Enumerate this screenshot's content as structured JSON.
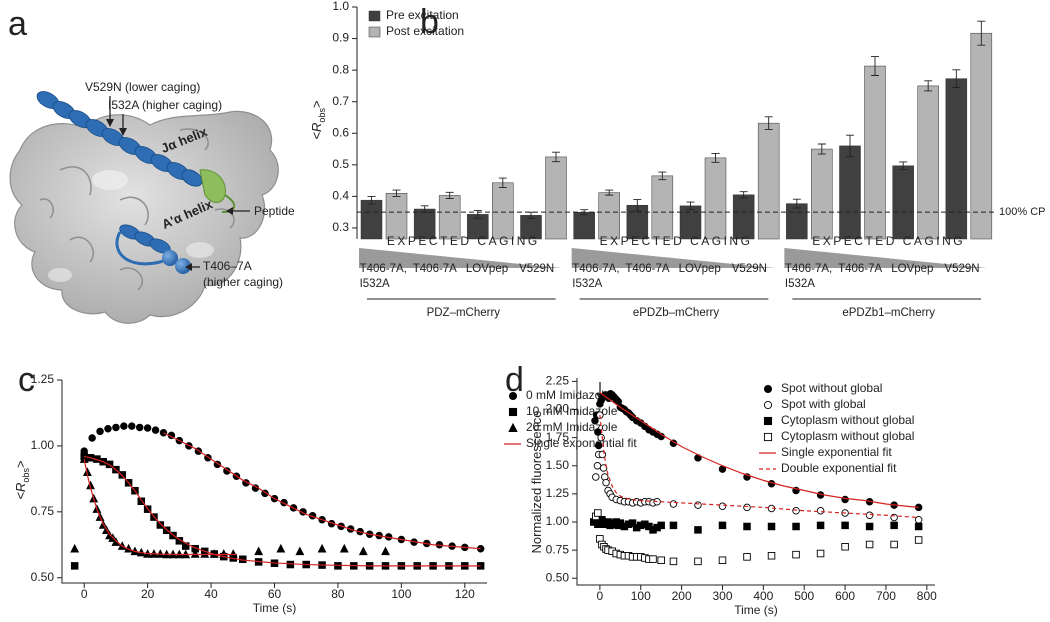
{
  "panel_a": {
    "panel": "a",
    "labels": [
      "V529N (lower caging)",
      "I532A (higher caging)",
      "Jα helix",
      "A'α helix",
      "Peptide",
      "T406–7A",
      "(higher caging)"
    ]
  },
  "chart_data": [
    {
      "type": "bar",
      "panel": "b",
      "ylabel": [
        "<",
        "R",
        "obs",
        ">"
      ],
      "categories": [
        "T406-7A, I532A",
        "T406-7A",
        "LOVpep",
        "V529N",
        "T406-7A, I532A",
        "T406-7A",
        "LOVpep",
        "V529N",
        "T406-7A, I532A",
        "T406-7A",
        "LOVpep",
        "V529N"
      ],
      "groups": [
        "PDZ–mCherry",
        "ePDZb–mCherry",
        "ePDZb1–mCherry"
      ],
      "caging_labels": [
        "EXPECTED CAGING",
        "EXPECTED CAGING",
        "EXPECTED CAGING"
      ],
      "series": [
        {
          "name": "Pre excitation",
          "color": "#404040",
          "values": [
            0.388,
            0.36,
            0.343,
            0.34,
            0.35,
            0.372,
            0.37,
            0.405,
            0.377,
            0.56,
            0.497,
            0.773
          ],
          "errors": [
            0.012,
            0.01,
            0.012,
            0.01,
            0.008,
            0.018,
            0.012,
            0.01,
            0.014,
            0.034,
            0.012,
            0.028
          ]
        },
        {
          "name": "Post excitation",
          "color": "#b4b4b4",
          "values": [
            0.41,
            0.403,
            0.443,
            0.525,
            0.412,
            0.465,
            0.522,
            0.632,
            0.55,
            0.813,
            0.75,
            0.917
          ],
          "errors": [
            0.01,
            0.01,
            0.015,
            0.015,
            0.008,
            0.012,
            0.014,
            0.02,
            0.016,
            0.03,
            0.016,
            0.038
          ]
        }
      ],
      "reference_line": {
        "value": 0.35,
        "label": "100% CP"
      },
      "ylim": [
        0.265,
        1.0
      ],
      "yticks": [
        0.3,
        0.4,
        0.5,
        0.6,
        0.7,
        0.8,
        0.9,
        {
          "value": 1.0,
          "label": "1.0"
        }
      ],
      "legend": "upper left"
    },
    {
      "type": "scatter",
      "panel": "c",
      "xlabel": "Time (s)",
      "ylabel": [
        "<",
        "R",
        "obs",
        ">"
      ],
      "xlim": [
        -7,
        127
      ],
      "ylim": [
        0.48,
        1.25
      ],
      "xticks": [
        0,
        20,
        40,
        60,
        80,
        100,
        120
      ],
      "yticks": [
        {
          "value": 0.5,
          "label": "0.50"
        },
        {
          "value": 0.75,
          "label": "0.75"
        },
        {
          "value": 1.0,
          "label": "1.00"
        },
        {
          "value": 1.25,
          "label": "1.25"
        }
      ],
      "legend": "upper right",
      "series": [
        {
          "name": "0 mM Imidazole",
          "marker": "circle",
          "filled": true,
          "color": "#000000",
          "x": [
            0,
            2.5,
            5,
            7.5,
            10,
            12.5,
            15,
            17.5,
            20,
            22.5,
            25,
            27.5,
            30,
            33,
            36,
            39,
            42,
            45,
            48,
            51,
            54,
            57,
            60,
            63,
            66,
            69,
            72,
            75,
            78,
            81,
            84,
            87,
            90,
            93,
            96,
            100,
            104,
            108,
            112,
            116,
            120,
            125
          ],
          "values": [
            0.98,
            1.03,
            1.055,
            1.065,
            1.07,
            1.075,
            1.075,
            1.07,
            1.068,
            1.06,
            1.05,
            1.04,
            1.02,
            1.0,
            0.98,
            0.955,
            0.93,
            0.905,
            0.885,
            0.86,
            0.84,
            0.82,
            0.8,
            0.785,
            0.765,
            0.75,
            0.735,
            0.72,
            0.705,
            0.695,
            0.685,
            0.675,
            0.665,
            0.66,
            0.655,
            0.645,
            0.635,
            0.63,
            0.625,
            0.62,
            0.615,
            0.61
          ]
        },
        {
          "name": "10 mM Imidazole",
          "marker": "square",
          "filled": true,
          "color": "#000000",
          "x": [
            -3,
            0,
            2,
            4,
            6,
            8,
            10,
            12,
            14,
            16,
            18,
            20,
            22,
            24,
            26,
            28,
            30,
            32,
            35,
            38,
            41,
            44,
            47,
            50,
            55,
            60,
            65,
            70,
            75,
            80,
            85,
            90,
            95,
            100,
            105,
            110,
            115,
            120,
            125
          ],
          "values": [
            0.545,
            0.96,
            0.955,
            0.95,
            0.94,
            0.93,
            0.91,
            0.89,
            0.86,
            0.83,
            0.79,
            0.76,
            0.73,
            0.7,
            0.68,
            0.66,
            0.64,
            0.62,
            0.61,
            0.6,
            0.59,
            0.58,
            0.575,
            0.57,
            0.56,
            0.555,
            0.55,
            0.55,
            0.548,
            0.545,
            0.545,
            0.545,
            0.545,
            0.545,
            0.545,
            0.545,
            0.545,
            0.545,
            0.545
          ]
        },
        {
          "name": "20 mM Imidazole",
          "marker": "triangle",
          "filled": true,
          "color": "#000000",
          "x": [
            -3,
            0,
            1,
            2,
            3,
            4,
            5,
            6,
            7,
            8,
            9,
            10,
            12,
            14,
            16,
            18,
            20,
            22,
            24,
            26,
            28,
            30,
            32,
            35,
            38,
            41,
            44,
            47,
            55,
            62,
            68,
            75,
            82,
            88,
            95
          ],
          "values": [
            0.61,
            0.95,
            0.9,
            0.85,
            0.8,
            0.76,
            0.73,
            0.7,
            0.68,
            0.66,
            0.65,
            0.635,
            0.62,
            0.61,
            0.6,
            0.595,
            0.59,
            0.59,
            0.59,
            0.588,
            0.588,
            0.588,
            0.588,
            0.59,
            0.59,
            0.59,
            0.59,
            0.59,
            0.6,
            0.61,
            0.6,
            0.61,
            0.61,
            0.6,
            0.6
          ]
        }
      ],
      "fits": [
        {
          "name": "Single exponential fit",
          "color": "#d62020",
          "dashed": false,
          "curves": [
            {
              "x": [
                25,
                30,
                35,
                40,
                45,
                50,
                55,
                60,
                65,
                70,
                75,
                80,
                85,
                90,
                95,
                100,
                105,
                110,
                115,
                120,
                125
              ],
              "values": [
                1.05,
                1.02,
                0.99,
                0.95,
                0.91,
                0.87,
                0.84,
                0.8,
                0.77,
                0.74,
                0.72,
                0.7,
                0.68,
                0.665,
                0.655,
                0.645,
                0.635,
                0.625,
                0.62,
                0.615,
                0.61
              ]
            },
            {
              "x": [
                0,
                2,
                4,
                6,
                8,
                10,
                12,
                14,
                16,
                18,
                20,
                22,
                24,
                26,
                28,
                30,
                34,
                38,
                42,
                46,
                50,
                60,
                70,
                80,
                90,
                100,
                110,
                125
              ],
              "values": [
                0.96,
                0.955,
                0.948,
                0.94,
                0.928,
                0.91,
                0.887,
                0.86,
                0.83,
                0.795,
                0.762,
                0.732,
                0.705,
                0.682,
                0.662,
                0.645,
                0.618,
                0.6,
                0.585,
                0.575,
                0.567,
                0.556,
                0.55,
                0.547,
                0.545,
                0.545,
                0.545,
                0.545
              ]
            },
            {
              "x": [
                0,
                1,
                2,
                3,
                4,
                5,
                6,
                8,
                10,
                12,
                14,
                16,
                18,
                20,
                25,
                30,
                40,
                48
              ],
              "values": [
                0.95,
                0.89,
                0.84,
                0.8,
                0.76,
                0.73,
                0.705,
                0.665,
                0.64,
                0.62,
                0.608,
                0.6,
                0.595,
                0.592,
                0.589,
                0.588,
                0.588,
                0.588
              ]
            }
          ]
        }
      ]
    },
    {
      "type": "scatter",
      "panel": "d",
      "xlabel": "Time (s)",
      "ylabel": [
        "Normalized fluorescence"
      ],
      "xlim": [
        -56,
        820
      ],
      "ylim": [
        0.44,
        2.28
      ],
      "xticks": [
        0,
        100,
        200,
        300,
        400,
        500,
        600,
        700,
        800
      ],
      "yticks": [
        {
          "value": 0.5,
          "label": "0.50"
        },
        {
          "value": 0.75,
          "label": "0.75"
        },
        {
          "value": 1.0,
          "label": "1.00"
        },
        {
          "value": 1.25,
          "label": "1.25"
        },
        {
          "value": 1.5,
          "label": "1.50"
        },
        {
          "value": 1.75,
          "label": "1.75"
        },
        {
          "value": 2.0,
          "label": "2.00"
        },
        {
          "value": 2.25,
          "label": "2.25"
        }
      ],
      "legend": "upper right",
      "series": [
        {
          "name": "Spot without global",
          "marker": "circle",
          "filled": true,
          "color": "#000000",
          "x": [
            -12,
            -8,
            -5,
            -3,
            0,
            3,
            6,
            10,
            14,
            18,
            22,
            26,
            30,
            35,
            40,
            45,
            50,
            55,
            60,
            65,
            70,
            75,
            80,
            90,
            100,
            110,
            120,
            130,
            140,
            150,
            180,
            240,
            300,
            360,
            420,
            480,
            540,
            600,
            660,
            720,
            780
          ],
          "values": [
            1.9,
            1.95,
            1.8,
            1.68,
            2.05,
            2.08,
            2.1,
            2.12,
            2.13,
            2.12,
            2.1,
            2.14,
            2.13,
            2.11,
            2.09,
            2.07,
            2.02,
            2.01,
            2.0,
            1.98,
            1.97,
            1.95,
            1.93,
            1.9,
            1.88,
            1.85,
            1.82,
            1.8,
            1.78,
            1.76,
            1.7,
            1.57,
            1.47,
            1.4,
            1.34,
            1.28,
            1.24,
            1.2,
            1.18,
            1.15,
            1.13
          ]
        },
        {
          "name": "Spot with global",
          "marker": "circle",
          "filled": false,
          "color": "#000000",
          "x": [
            -10,
            -6,
            -3,
            0,
            3,
            6,
            9,
            12,
            15,
            20,
            25,
            30,
            40,
            50,
            60,
            70,
            80,
            90,
            100,
            110,
            120,
            130,
            140,
            180,
            240,
            300,
            360,
            420,
            480,
            540,
            600,
            660,
            720,
            780
          ],
          "values": [
            1.4,
            1.5,
            1.6,
            1.95,
            1.75,
            1.6,
            1.48,
            1.4,
            1.35,
            1.28,
            1.25,
            1.22,
            1.2,
            1.19,
            1.18,
            1.18,
            1.17,
            1.18,
            1.17,
            1.18,
            1.18,
            1.17,
            1.18,
            1.16,
            1.15,
            1.14,
            1.13,
            1.12,
            1.1,
            1.1,
            1.08,
            1.06,
            1.04,
            1.02
          ]
        },
        {
          "name": "Cytoplasm without global",
          "marker": "square",
          "filled": true,
          "color": "#000000",
          "x": [
            -15,
            -10,
            -5,
            0,
            5,
            10,
            15,
            20,
            25,
            30,
            35,
            40,
            45,
            50,
            60,
            70,
            80,
            90,
            100,
            110,
            120,
            130,
            140,
            150,
            180,
            240,
            300,
            360,
            420,
            480,
            540,
            600,
            660,
            720,
            780
          ],
          "values": [
            1.0,
            1.02,
            0.98,
            1.0,
            1.02,
            0.98,
            0.99,
            1.0,
            0.97,
            0.99,
            0.98,
            1.0,
            0.97,
            0.99,
            0.96,
            0.98,
            0.99,
            0.95,
            0.97,
            0.98,
            0.96,
            0.93,
            0.95,
            0.97,
            0.97,
            0.93,
            0.97,
            0.96,
            0.96,
            0.96,
            0.97,
            0.97,
            0.96,
            0.97,
            0.96
          ]
        },
        {
          "name": "Cytoplasm without global",
          "marker": "square",
          "filled": false,
          "color": "#000000",
          "x": [
            -10,
            -5,
            0,
            5,
            10,
            15,
            20,
            30,
            40,
            50,
            60,
            70,
            80,
            90,
            100,
            110,
            120,
            130,
            150,
            180,
            240,
            300,
            360,
            420,
            480,
            540,
            600,
            660,
            720,
            780
          ],
          "values": [
            1.05,
            1.08,
            0.85,
            0.8,
            0.78,
            0.76,
            0.75,
            0.74,
            0.72,
            0.71,
            0.7,
            0.7,
            0.69,
            0.69,
            0.69,
            0.68,
            0.67,
            0.67,
            0.66,
            0.65,
            0.65,
            0.66,
            0.69,
            0.7,
            0.71,
            0.72,
            0.78,
            0.8,
            0.8,
            0.84
          ]
        }
      ],
      "fits": [
        {
          "name": "Single exponential fit",
          "color": "#d62020",
          "dashed": false,
          "curves": [
            {
              "x": [
                0,
                50,
                100,
                150,
                200,
                250,
                300,
                350,
                400,
                450,
                500,
                550,
                600,
                650,
                700,
                750,
                780
              ],
              "values": [
                2.15,
                2.02,
                1.9,
                1.78,
                1.67,
                1.58,
                1.5,
                1.43,
                1.37,
                1.32,
                1.28,
                1.24,
                1.21,
                1.19,
                1.16,
                1.14,
                1.13
              ]
            }
          ]
        },
        {
          "name": "Double exponential fit",
          "color": "#d62020",
          "dashed": true,
          "curves": [
            {
              "x": [
                0,
                5,
                10,
                15,
                20,
                30,
                40,
                50,
                75,
                100,
                150,
                200,
                300,
                400,
                500,
                600,
                700,
                780
              ],
              "values": [
                1.95,
                1.78,
                1.62,
                1.5,
                1.42,
                1.32,
                1.26,
                1.23,
                1.2,
                1.19,
                1.18,
                1.17,
                1.15,
                1.13,
                1.1,
                1.08,
                1.06,
                1.04
              ]
            }
          ]
        }
      ]
    }
  ]
}
